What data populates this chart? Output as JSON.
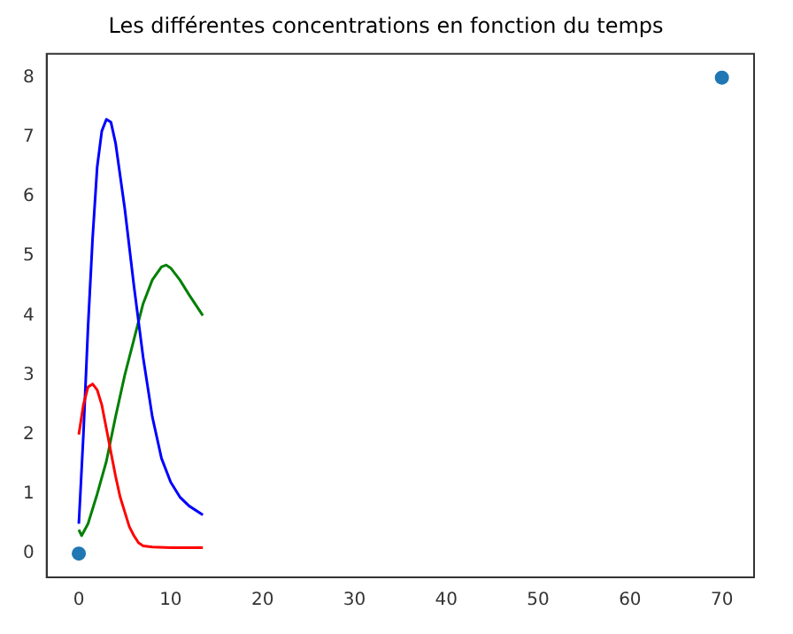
{
  "chart_data": {
    "type": "line",
    "title": "Les différentes concentrations en fonction du temps",
    "xlim": [
      -3.5,
      73.5
    ],
    "ylim": [
      -0.4,
      8.4
    ],
    "xticks": [
      0,
      10,
      20,
      30,
      40,
      50,
      60,
      70
    ],
    "yticks": [
      0,
      1,
      2,
      3,
      4,
      5,
      6,
      7,
      8
    ],
    "grid": false,
    "legend": false,
    "series": [
      {
        "type": "line",
        "color": "#ff0000",
        "marker": "none",
        "x": [
          0,
          0.5,
          1,
          1.5,
          2,
          2.5,
          3,
          3.5,
          4,
          4.5,
          5,
          5.5,
          6,
          6.5,
          7,
          8,
          10,
          13.5
        ],
        "values": [
          2.0,
          2.5,
          2.8,
          2.85,
          2.75,
          2.5,
          2.1,
          1.7,
          1.3,
          0.95,
          0.7,
          0.45,
          0.3,
          0.18,
          0.13,
          0.11,
          0.1,
          0.1
        ]
      },
      {
        "type": "line",
        "color": "#0000ff",
        "marker": "none",
        "x": [
          0,
          0.5,
          1,
          1.5,
          2,
          2.5,
          3,
          3.5,
          4,
          5,
          6,
          6.5,
          7,
          8,
          9,
          10,
          11,
          12,
          13.5
        ],
        "values": [
          0.5,
          2.0,
          3.8,
          5.3,
          6.5,
          7.1,
          7.3,
          7.25,
          6.9,
          5.8,
          4.5,
          3.9,
          3.3,
          2.3,
          1.6,
          1.2,
          0.95,
          0.8,
          0.65
        ]
      },
      {
        "type": "line",
        "color": "#008000",
        "marker": "none",
        "x": [
          0,
          0.3,
          1,
          2,
          3,
          4,
          5,
          6,
          7,
          8,
          9,
          9.5,
          10,
          11,
          12,
          13.5
        ],
        "values": [
          0.4,
          0.3,
          0.5,
          1.0,
          1.55,
          2.3,
          3.0,
          3.6,
          4.2,
          4.6,
          4.82,
          4.85,
          4.8,
          4.6,
          4.35,
          4.0
        ]
      },
      {
        "type": "scatter",
        "color": "#1f77b4",
        "marker": "circle",
        "x": [
          0,
          70
        ],
        "values": [
          0,
          8
        ]
      }
    ]
  }
}
